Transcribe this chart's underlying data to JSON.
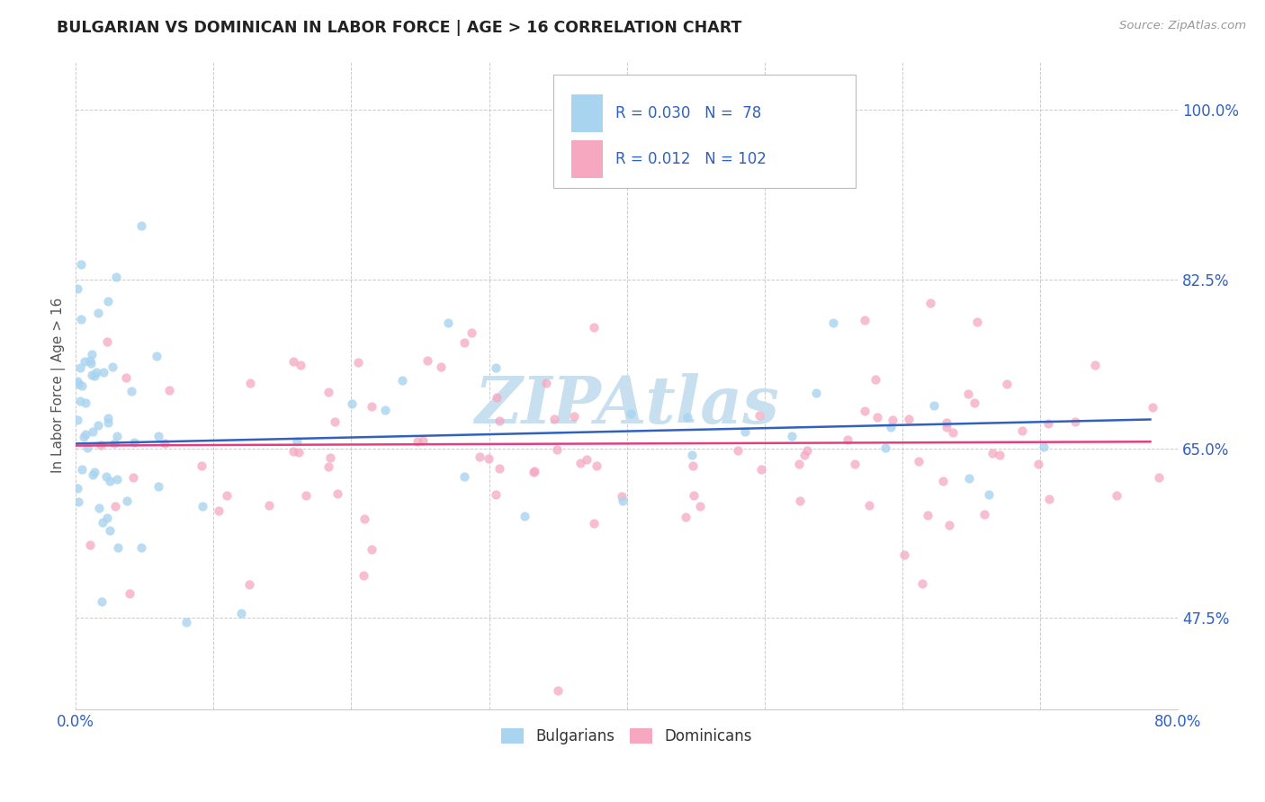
{
  "title": "BULGARIAN VS DOMINICAN IN LABOR FORCE | AGE > 16 CORRELATION CHART",
  "source_text": "Source: ZipAtlas.com",
  "ylabel": "In Labor Force | Age > 16",
  "xlim": [
    0.0,
    0.8
  ],
  "ylim": [
    0.38,
    1.05
  ],
  "ytick_vals": [
    0.475,
    0.65,
    0.825,
    1.0
  ],
  "ytick_labels": [
    "47.5%",
    "65.0%",
    "82.5%",
    "100.0%"
  ],
  "xtick_vals": [
    0.0,
    0.1,
    0.2,
    0.3,
    0.4,
    0.5,
    0.6,
    0.7,
    0.8
  ],
  "xtick_labels": [
    "0.0%",
    "",
    "",
    "",
    "",
    "",
    "",
    "",
    "80.0%"
  ],
  "legend_r_bulgarian": "0.030",
  "legend_n_bulgarian": "78",
  "legend_r_dominican": "0.012",
  "legend_n_dominican": "102",
  "legend_labels": [
    "Bulgarians",
    "Dominicans"
  ],
  "color_bulgarian": "#a8d4f0",
  "color_dominican": "#f5a8c0",
  "line_color_bulgarian": "#3060c0",
  "line_color_dominican": "#e04080",
  "watermark_text": "ZIPAtlas",
  "watermark_color": "#c8dff0",
  "bg_color": "#ffffff",
  "grid_color": "#cccccc",
  "title_color": "#222222",
  "axis_label_color": "#3060c0",
  "legend_text_color": "#3060c0"
}
